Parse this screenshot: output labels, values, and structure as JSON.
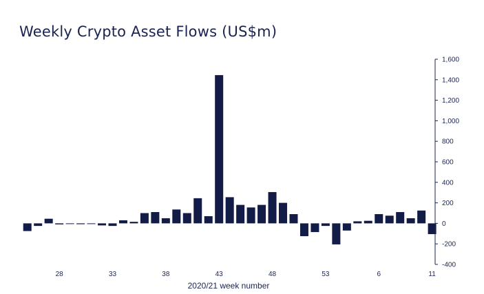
{
  "chart_data": {
    "type": "bar",
    "title": "Weekly Crypto Asset Flows (US$m)",
    "xlabel": "2020/21 week number",
    "ylabel": "",
    "ylim": [
      -400,
      1600
    ],
    "y_ticks": [
      1600,
      1400,
      1200,
      1000,
      800,
      600,
      400,
      200,
      0,
      -200,
      -400
    ],
    "y_tick_labels": [
      "1,600",
      "1,400",
      "1,200",
      "1,000",
      "800",
      "600",
      "400",
      "200",
      "0",
      "-200",
      "-400"
    ],
    "y_axis_side": "right",
    "grid": false,
    "legend": "none",
    "bar_color": "#131c46",
    "x_tick_labels": [
      {
        "label": "28",
        "index": 3
      },
      {
        "label": "33",
        "index": 8
      },
      {
        "label": "38",
        "index": 13
      },
      {
        "label": "43",
        "index": 18
      },
      {
        "label": "48",
        "index": 23
      },
      {
        "label": "53",
        "index": 28
      },
      {
        "label": "6",
        "index": 33
      },
      {
        "label": "11",
        "index": 38
      }
    ],
    "values": [
      -75,
      -25,
      45,
      -10,
      -5,
      -8,
      -5,
      -20,
      -25,
      30,
      15,
      100,
      110,
      50,
      135,
      100,
      245,
      70,
      1445,
      255,
      180,
      155,
      180,
      305,
      200,
      90,
      -125,
      -85,
      -25,
      -205,
      -70,
      20,
      25,
      90,
      75,
      110,
      50,
      125,
      -105
    ]
  }
}
